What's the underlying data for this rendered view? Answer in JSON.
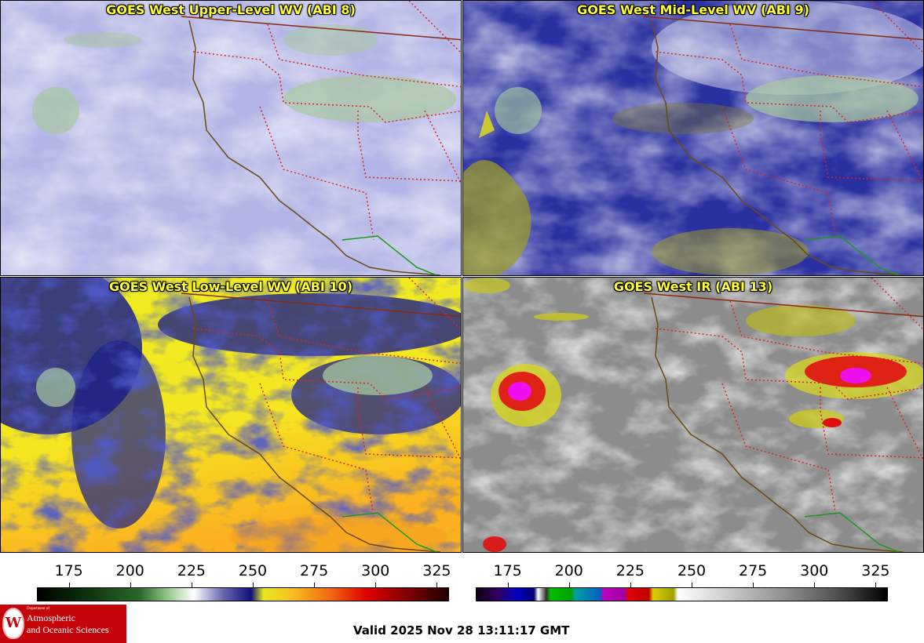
{
  "panels": {
    "upper": {
      "title": "GOES West Upper-Level WV (ABI 8)"
    },
    "mid": {
      "title": "GOES West Mid-Level WV (ABI 9)"
    },
    "low": {
      "title": "GOES West Low-Level WV (ABI 10)"
    },
    "ir": {
      "title": "GOES West IR (ABI 13)"
    }
  },
  "colorbars": {
    "wv": {
      "ticks": [
        "175",
        "200",
        "225",
        "250",
        "275",
        "300",
        "325"
      ],
      "values": [
        175,
        200,
        225,
        250,
        275,
        300,
        325
      ],
      "range": [
        162,
        330
      ]
    },
    "ir": {
      "ticks": [
        "175",
        "200",
        "225",
        "250",
        "275",
        "300",
        "325"
      ],
      "values": [
        175,
        200,
        225,
        250,
        275,
        300,
        325
      ],
      "range": [
        162,
        330
      ]
    }
  },
  "footer": {
    "valid_time": "Valid 2025 Nov 28 13:11:17 GMT",
    "logo": {
      "seal_letter": "W",
      "dept_small": "Department of",
      "line1": "Atmospheric",
      "line2": "and Oceanic Sciences"
    }
  },
  "colors": {
    "title_text": "#ffff33",
    "state_border": "#e02020",
    "coastline": "#6b4a10",
    "mexico_border": "#1a9a1a",
    "logo_bg": "#c5050c"
  },
  "chart_data": [
    {
      "type": "heatmap",
      "title": "",
      "xlabel": "",
      "ylabel": "",
      "colorbar_ticks": [
        175,
        200,
        225,
        250,
        275,
        300,
        325
      ],
      "colorbar_range": [
        162,
        330
      ]
    },
    {
      "type": "heatmap",
      "title": "",
      "xlabel": "",
      "ylabel": "",
      "colorbar_ticks": [
        175,
        200,
        225,
        250,
        275,
        300,
        325
      ],
      "colorbar_range": [
        162,
        330
      ]
    }
  ]
}
